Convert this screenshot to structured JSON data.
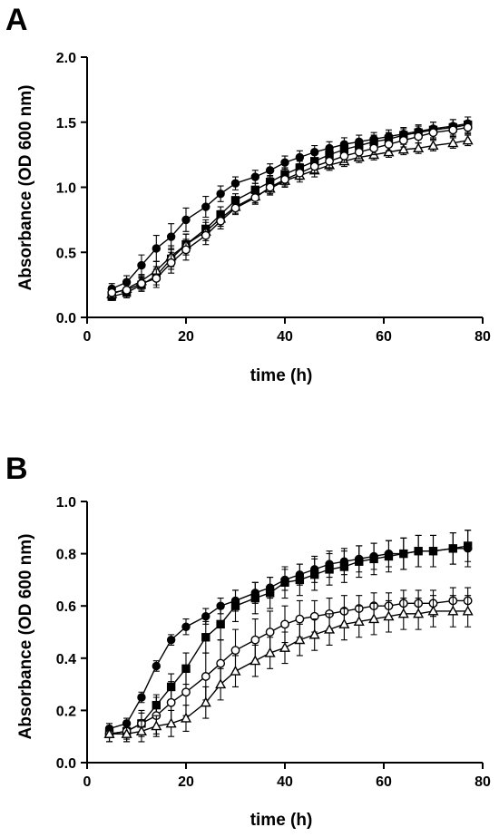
{
  "chart_data": [
    {
      "panel_label": "A",
      "type": "line",
      "xlabel": "time (h)",
      "ylabel": "Absorbance (OD 600 nm)",
      "xlim": [
        0,
        80
      ],
      "ylim": [
        0,
        2.0
      ],
      "xticks": [
        0,
        20,
        40,
        60,
        80
      ],
      "yticks": [
        0.0,
        0.5,
        1.0,
        1.5,
        2.0
      ],
      "ytick_labels": [
        "0.0",
        "0.5",
        "1.0",
        "1.5",
        "2.0"
      ],
      "xtick_labels": [
        "0",
        "20",
        "40",
        "60",
        "80"
      ],
      "grid": false,
      "x": [
        5,
        8,
        11,
        14,
        17,
        20,
        24,
        27,
        30,
        34,
        37,
        40,
        43,
        46,
        49,
        52,
        55,
        58,
        61,
        64,
        67,
        70,
        74,
        77
      ],
      "series": [
        {
          "marker": "filled-circle",
          "values": [
            0.22,
            0.27,
            0.4,
            0.53,
            0.62,
            0.75,
            0.85,
            0.95,
            1.03,
            1.08,
            1.13,
            1.19,
            1.23,
            1.27,
            1.3,
            1.33,
            1.35,
            1.37,
            1.39,
            1.41,
            1.43,
            1.45,
            1.47,
            1.49
          ],
          "errors": [
            0.04,
            0.05,
            0.08,
            0.1,
            0.1,
            0.09,
            0.08,
            0.06,
            0.05,
            0.05,
            0.05,
            0.05,
            0.05,
            0.05,
            0.05,
            0.05,
            0.05,
            0.05,
            0.05,
            0.05,
            0.05,
            0.05,
            0.05,
            0.05
          ]
        },
        {
          "marker": "filled-square",
          "values": [
            0.16,
            0.19,
            0.25,
            0.32,
            0.45,
            0.56,
            0.68,
            0.79,
            0.9,
            0.98,
            1.04,
            1.1,
            1.15,
            1.2,
            1.25,
            1.29,
            1.32,
            1.35,
            1.37,
            1.4,
            1.42,
            1.44,
            1.46,
            1.48
          ],
          "errors": [
            0.03,
            0.04,
            0.05,
            0.07,
            0.08,
            0.08,
            0.07,
            0.06,
            0.05,
            0.05,
            0.05,
            0.05,
            0.05,
            0.05,
            0.05,
            0.05,
            0.05,
            0.05,
            0.05,
            0.05,
            0.05,
            0.06,
            0.06,
            0.06
          ]
        },
        {
          "marker": "open-triangle",
          "values": [
            0.18,
            0.22,
            0.28,
            0.36,
            0.47,
            0.56,
            0.66,
            0.76,
            0.85,
            0.93,
            0.99,
            1.05,
            1.09,
            1.13,
            1.17,
            1.2,
            1.23,
            1.25,
            1.27,
            1.29,
            1.3,
            1.32,
            1.34,
            1.36
          ],
          "errors": [
            0.03,
            0.04,
            0.05,
            0.07,
            0.08,
            0.08,
            0.07,
            0.06,
            0.05,
            0.05,
            0.05,
            0.05,
            0.05,
            0.05,
            0.04,
            0.04,
            0.04,
            0.04,
            0.04,
            0.04,
            0.04,
            0.04,
            0.04,
            0.04
          ]
        },
        {
          "marker": "open-circle",
          "values": [
            0.19,
            0.21,
            0.26,
            0.3,
            0.42,
            0.52,
            0.63,
            0.74,
            0.84,
            0.92,
            1.0,
            1.06,
            1.11,
            1.16,
            1.2,
            1.24,
            1.27,
            1.3,
            1.33,
            1.36,
            1.39,
            1.42,
            1.44,
            1.46
          ],
          "errors": [
            0.04,
            0.04,
            0.05,
            0.07,
            0.08,
            0.08,
            0.07,
            0.06,
            0.05,
            0.05,
            0.05,
            0.05,
            0.05,
            0.05,
            0.05,
            0.05,
            0.05,
            0.05,
            0.05,
            0.05,
            0.05,
            0.05,
            0.05,
            0.05
          ]
        }
      ]
    },
    {
      "panel_label": "B",
      "type": "line",
      "xlabel": "time (h)",
      "ylabel": "Absorbance (OD 600 nm)",
      "xlim": [
        0,
        80
      ],
      "ylim": [
        0,
        1.0
      ],
      "xticks": [
        0,
        20,
        40,
        60,
        80
      ],
      "yticks": [
        0.0,
        0.2,
        0.4,
        0.6,
        0.8,
        1.0
      ],
      "ytick_labels": [
        "0.0",
        "0.2",
        "0.4",
        "0.6",
        "0.8",
        "1.0"
      ],
      "xtick_labels": [
        "0",
        "20",
        "40",
        "60",
        "80"
      ],
      "grid": false,
      "x": [
        4.5,
        8,
        11,
        14,
        17,
        20,
        24,
        27,
        30,
        34,
        37,
        40,
        43,
        46,
        49,
        52,
        55,
        58,
        61,
        64,
        67,
        70,
        74,
        77
      ],
      "series": [
        {
          "marker": "filled-circle",
          "values": [
            0.13,
            0.15,
            0.25,
            0.37,
            0.47,
            0.52,
            0.56,
            0.6,
            0.62,
            0.65,
            0.67,
            0.7,
            0.72,
            0.74,
            0.76,
            0.77,
            0.78,
            0.79,
            0.8,
            0.8,
            0.81,
            0.81,
            0.82,
            0.82
          ],
          "errors": [
            0.02,
            0.02,
            0.02,
            0.02,
            0.02,
            0.03,
            0.03,
            0.03,
            0.04,
            0.04,
            0.04,
            0.04,
            0.04,
            0.05,
            0.05,
            0.05,
            0.05,
            0.05,
            0.05,
            0.06,
            0.06,
            0.06,
            0.06,
            0.07
          ]
        },
        {
          "marker": "filled-square",
          "values": [
            0.11,
            0.12,
            0.15,
            0.22,
            0.29,
            0.36,
            0.48,
            0.53,
            0.6,
            0.63,
            0.65,
            0.69,
            0.7,
            0.72,
            0.74,
            0.75,
            0.77,
            0.78,
            0.79,
            0.8,
            0.81,
            0.81,
            0.82,
            0.83
          ],
          "errors": [
            0.03,
            0.03,
            0.04,
            0.04,
            0.05,
            0.06,
            0.06,
            0.06,
            0.06,
            0.06,
            0.06,
            0.06,
            0.06,
            0.06,
            0.06,
            0.06,
            0.06,
            0.06,
            0.06,
            0.06,
            0.06,
            0.06,
            0.06,
            0.06
          ]
        },
        {
          "marker": "open-circle",
          "values": [
            0.11,
            0.12,
            0.15,
            0.18,
            0.23,
            0.27,
            0.33,
            0.38,
            0.43,
            0.47,
            0.5,
            0.53,
            0.55,
            0.56,
            0.57,
            0.58,
            0.59,
            0.6,
            0.6,
            0.61,
            0.61,
            0.61,
            0.62,
            0.62
          ],
          "errors": [
            0.03,
            0.04,
            0.05,
            0.07,
            0.08,
            0.09,
            0.09,
            0.09,
            0.08,
            0.08,
            0.08,
            0.07,
            0.07,
            0.06,
            0.06,
            0.06,
            0.05,
            0.05,
            0.05,
            0.05,
            0.05,
            0.05,
            0.05,
            0.05
          ]
        },
        {
          "marker": "open-triangle",
          "values": [
            0.11,
            0.11,
            0.12,
            0.14,
            0.15,
            0.17,
            0.23,
            0.3,
            0.35,
            0.39,
            0.42,
            0.44,
            0.47,
            0.49,
            0.51,
            0.53,
            0.54,
            0.55,
            0.56,
            0.57,
            0.57,
            0.58,
            0.58,
            0.58
          ],
          "errors": [
            0.03,
            0.03,
            0.04,
            0.04,
            0.05,
            0.05,
            0.06,
            0.06,
            0.06,
            0.06,
            0.06,
            0.06,
            0.06,
            0.06,
            0.06,
            0.06,
            0.06,
            0.06,
            0.06,
            0.06,
            0.06,
            0.06,
            0.06,
            0.06
          ]
        }
      ]
    }
  ]
}
